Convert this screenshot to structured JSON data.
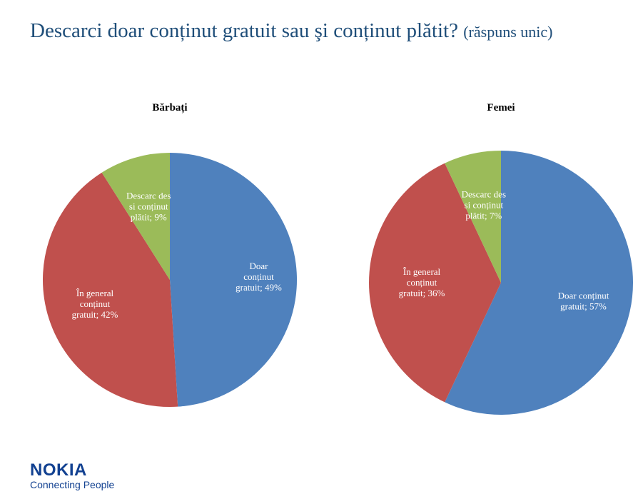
{
  "header": {
    "title": "Descarci doar conținut gratuit sau şi conținut plătit?",
    "subtitle": "(răspuns unic)"
  },
  "logo": {
    "brand": "NOKIA",
    "tagline": "Connecting People"
  },
  "colors": {
    "blue": "#4f81bd",
    "red": "#c0504d",
    "green": "#9bbb59",
    "title": "#1f4e79",
    "logo": "#124191"
  },
  "chart_data": [
    {
      "type": "pie",
      "title": "Bărbați",
      "slices": [
        {
          "label": "Doar conținut gratuit; 49%",
          "lines": [
            "Doar",
            "conținut",
            "gratuit; 49%"
          ],
          "value": 49,
          "color": "#4f81bd"
        },
        {
          "label": "În general conținut gratuit; 42%",
          "lines": [
            "În general",
            "conținut",
            "gratuit; 42%"
          ],
          "value": 42,
          "color": "#c0504d"
        },
        {
          "label": "Descarc des si conținut plătit; 9%",
          "lines": [
            "Descarc des",
            "si conținut",
            "plătit; 9%"
          ],
          "value": 9,
          "color": "#9bbb59"
        }
      ]
    },
    {
      "type": "pie",
      "title": "Femei",
      "slices": [
        {
          "label": "Doar conținut gratuit; 57%",
          "lines": [
            "Doar conținut",
            "gratuit; 57%"
          ],
          "value": 57,
          "color": "#4f81bd"
        },
        {
          "label": "În general conținut gratuit; 36%",
          "lines": [
            "În general",
            "conținut",
            "gratuit; 36%"
          ],
          "value": 36,
          "color": "#c0504d"
        },
        {
          "label": "Descarc des si conținut plătit; 7%",
          "lines": [
            "Descarc des",
            "si conținut",
            "plătit; 7%"
          ],
          "value": 7,
          "color": "#9bbb59"
        }
      ]
    }
  ]
}
